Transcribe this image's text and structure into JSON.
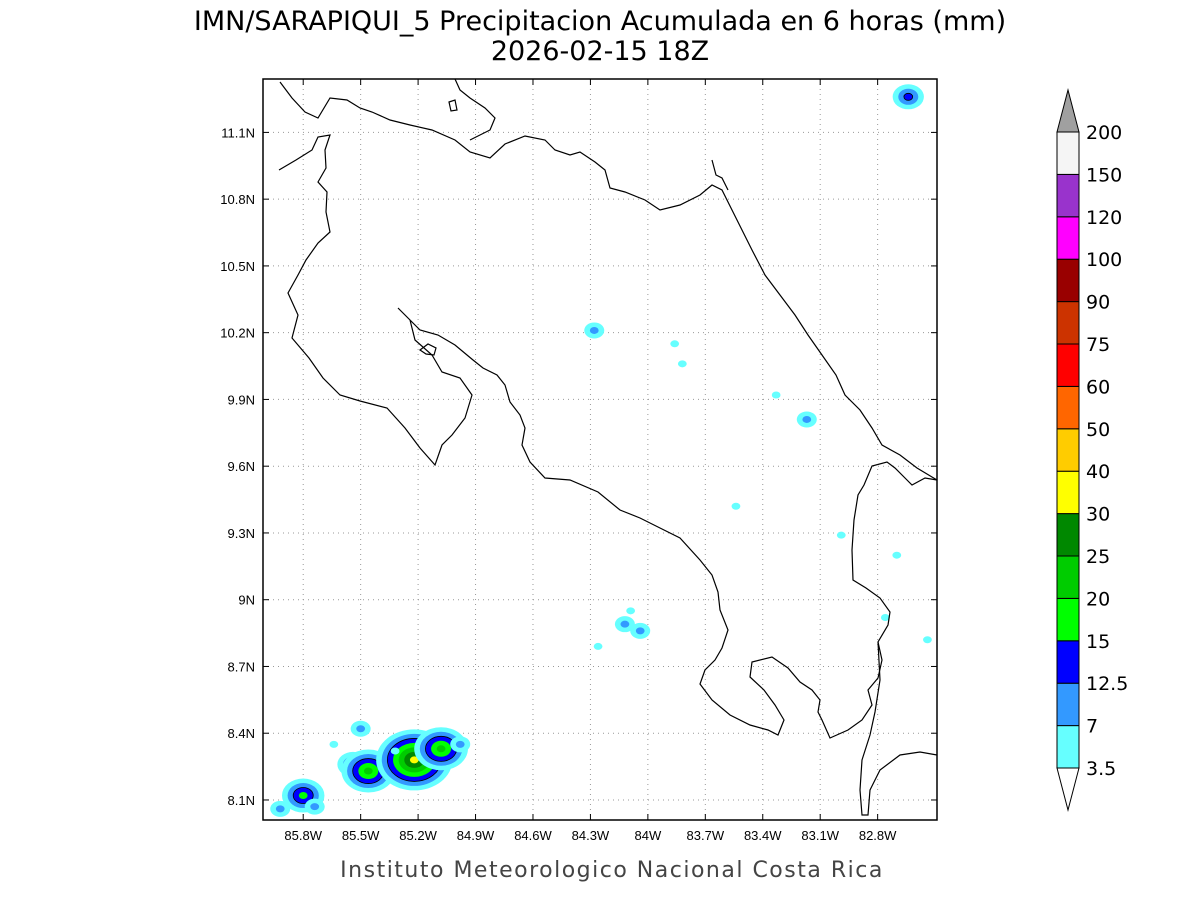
{
  "title": "IMN/SARAPIQUI_5 Precipitacion Acumulada en 6 horas (mm)",
  "subtitle": "2026-02-15 18Z",
  "credit": "Instituto Meteorologico Nacional Costa Rica",
  "map": {
    "lon_range": [
      -86.01,
      -82.49
    ],
    "lat_range": [
      8.01,
      11.34
    ],
    "lon_ticks": [
      "85.8W",
      "85.5W",
      "85.2W",
      "84.9W",
      "84.6W",
      "84.3W",
      "84W",
      "83.7W",
      "83.4W",
      "83.1W",
      "82.8W"
    ],
    "lon_values": [
      -85.8,
      -85.5,
      -85.2,
      -84.9,
      -84.6,
      -84.3,
      -84.0,
      -83.7,
      -83.4,
      -83.1,
      -82.8
    ],
    "lat_ticks": [
      "8.1N",
      "8.4N",
      "8.7N",
      "9N",
      "9.3N",
      "9.6N",
      "9.9N",
      "10.2N",
      "10.5N",
      "10.8N",
      "11.1N"
    ],
    "lat_values": [
      8.1,
      8.4,
      8.7,
      9.0,
      9.3,
      9.6,
      9.9,
      10.2,
      10.5,
      10.8,
      11.1
    ],
    "grid": true
  },
  "colorbar": {
    "labels": [
      "3.5",
      "7",
      "12.5",
      "15",
      "20",
      "25",
      "30",
      "40",
      "50",
      "60",
      "75",
      "90",
      "100",
      "120",
      "150",
      "200"
    ],
    "colors": [
      "#66ffff",
      "#3399ff",
      "#0000ff",
      "#00ff00",
      "#00cc00",
      "#008800",
      "#ffff00",
      "#ffcc00",
      "#ff6600",
      "#ff0000",
      "#cc3300",
      "#990000",
      "#ff00ff",
      "#9933cc",
      "#f5f5f5",
      "#a0a0a0"
    ],
    "under_color": "#ffffff",
    "over_color": "#a0a0a0"
  },
  "precip_cells": [
    {
      "lon": -85.92,
      "lat": 8.06,
      "level": 1
    },
    {
      "lon": -85.8,
      "lat": 8.12,
      "level": 3
    },
    {
      "lon": -85.74,
      "lat": 8.07,
      "level": 1
    },
    {
      "lon": -85.54,
      "lat": 8.26,
      "level": 2
    },
    {
      "lon": -85.46,
      "lat": 8.23,
      "level": 4
    },
    {
      "lon": -85.5,
      "lat": 8.42,
      "level": 1
    },
    {
      "lon": -85.64,
      "lat": 8.35,
      "level": 0
    },
    {
      "lon": -85.22,
      "lat": 8.28,
      "level": 6
    },
    {
      "lon": -85.08,
      "lat": 8.33,
      "level": 4
    },
    {
      "lon": -84.98,
      "lat": 8.35,
      "level": 1
    },
    {
      "lon": -85.32,
      "lat": 8.32,
      "level": 0
    },
    {
      "lon": -84.28,
      "lat": 10.21,
      "level": 1
    },
    {
      "lon": -83.86,
      "lat": 10.15,
      "level": 0
    },
    {
      "lon": -83.82,
      "lat": 10.06,
      "level": 0
    },
    {
      "lon": -83.33,
      "lat": 9.92,
      "level": 0
    },
    {
      "lon": -83.17,
      "lat": 9.81,
      "level": 1
    },
    {
      "lon": -84.12,
      "lat": 8.89,
      "level": 1
    },
    {
      "lon": -84.04,
      "lat": 8.86,
      "level": 1
    },
    {
      "lon": -84.09,
      "lat": 8.95,
      "level": 0
    },
    {
      "lon": -84.26,
      "lat": 8.79,
      "level": 0
    },
    {
      "lon": -82.64,
      "lat": 11.26,
      "level": 2
    },
    {
      "lon": -82.76,
      "lat": 8.92,
      "level": 0
    },
    {
      "lon": -82.7,
      "lat": 9.2,
      "level": 0
    },
    {
      "lon": -82.54,
      "lat": 8.82,
      "level": 0
    },
    {
      "lon": -82.99,
      "lat": 9.29,
      "level": 0
    },
    {
      "lon": -83.54,
      "lat": 9.42,
      "level": 0
    }
  ]
}
